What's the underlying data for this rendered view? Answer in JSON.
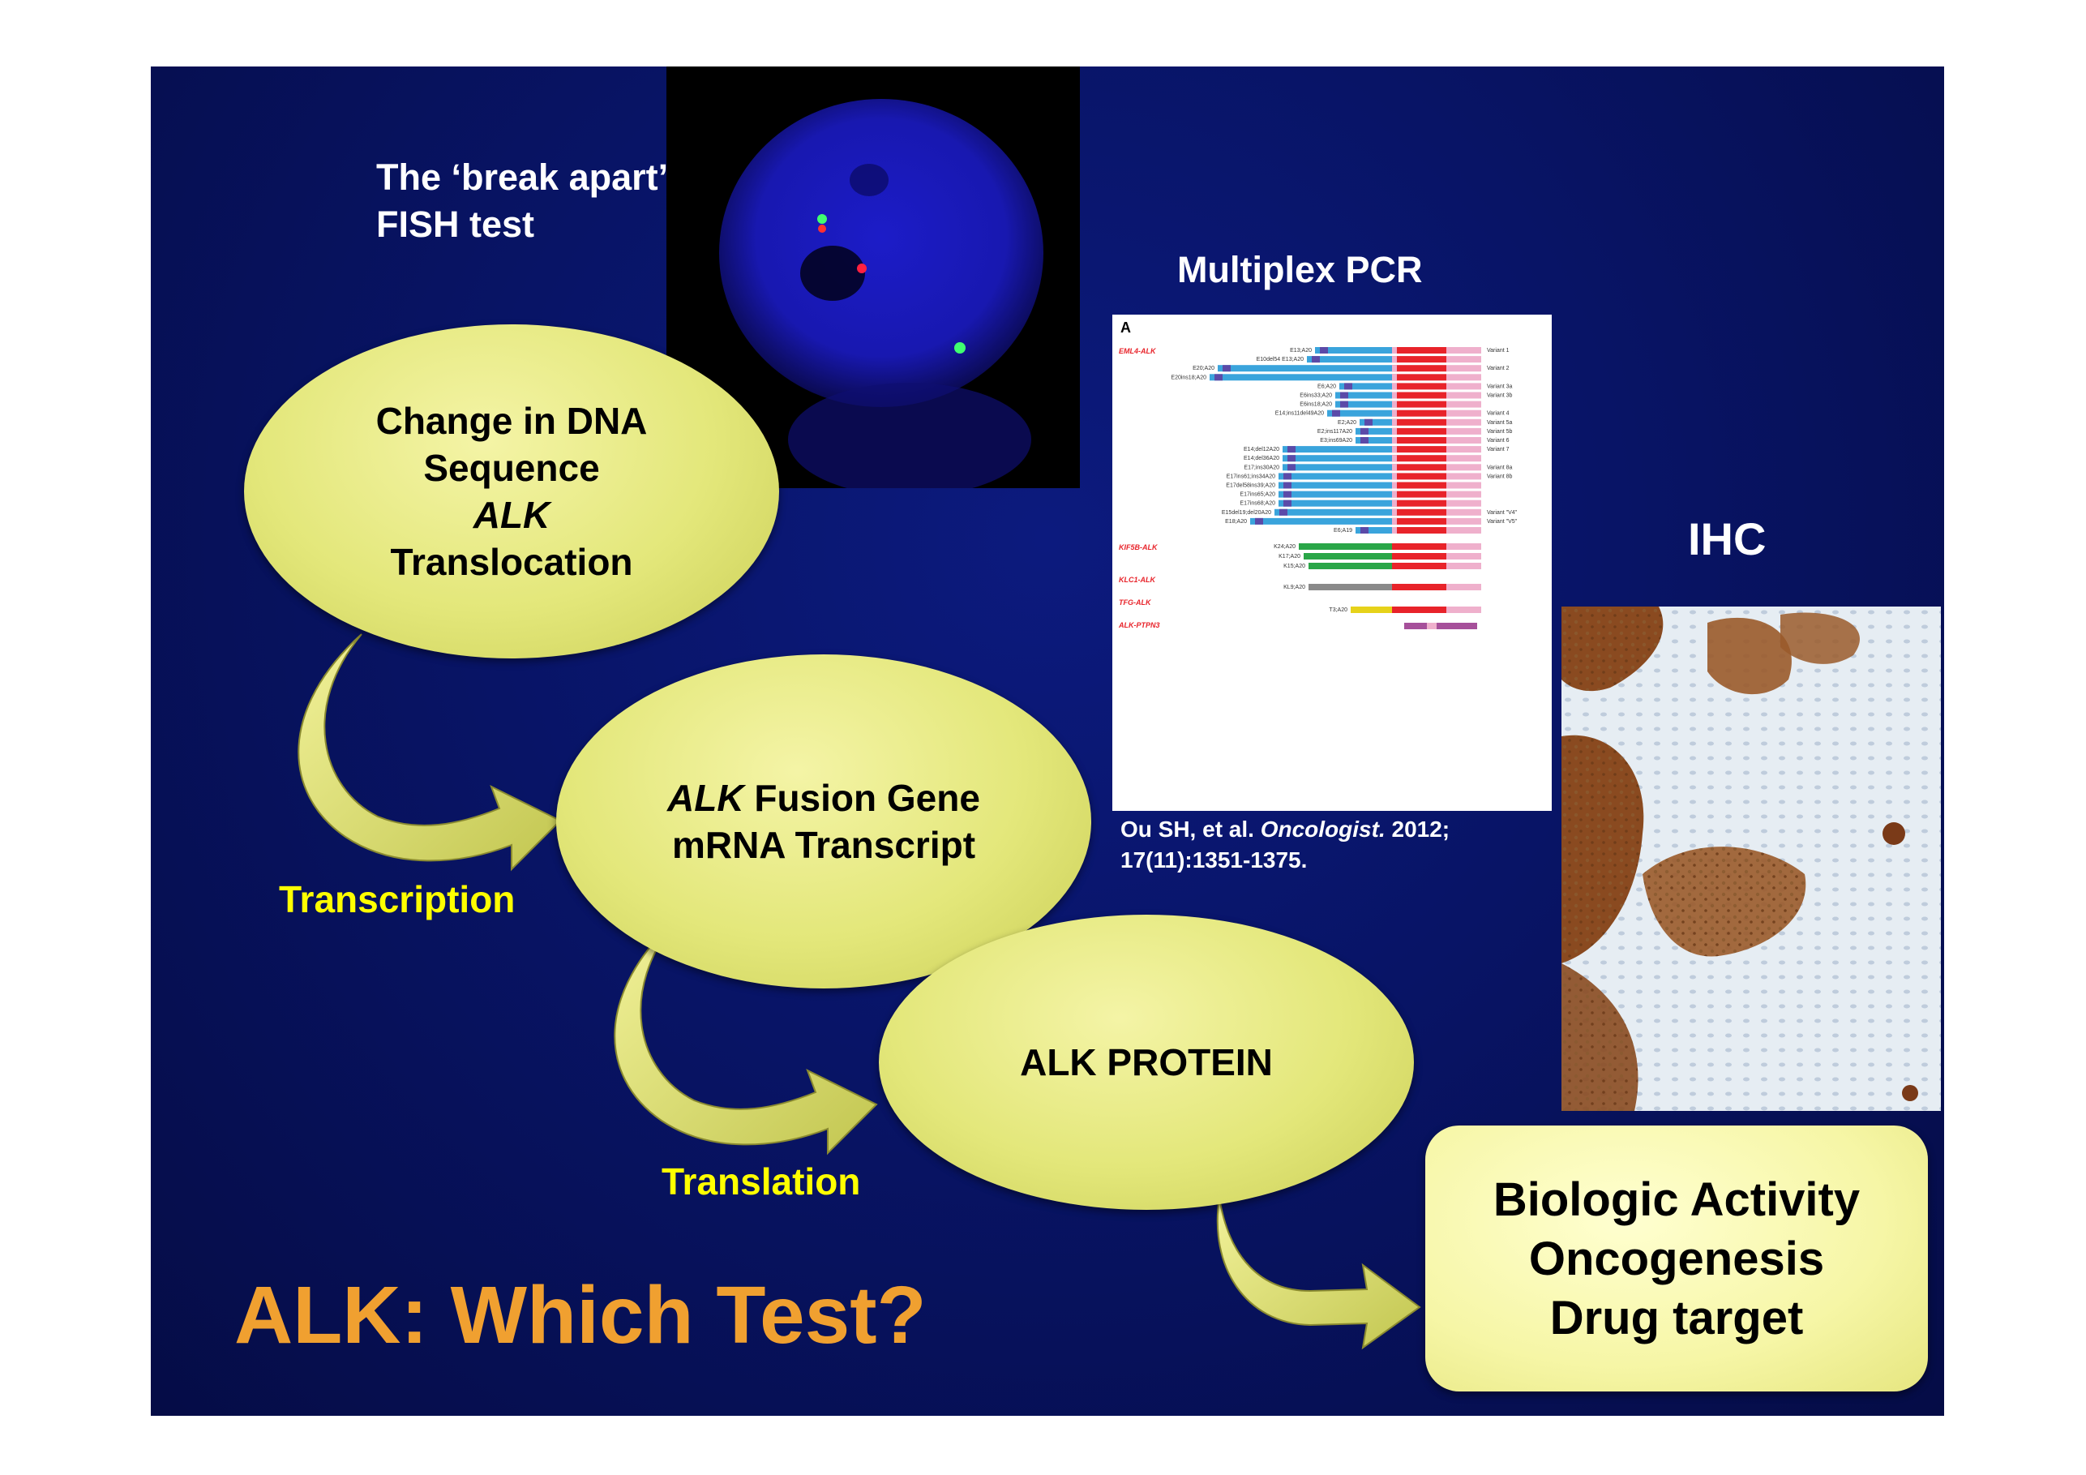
{
  "slide": {
    "title": "ALK: Which Test?",
    "fish_label_line1": "The ‘break apart’",
    "fish_label_line2": "FISH test",
    "pcr_label": "Multiplex PCR",
    "ihc_label": "IHC",
    "citation_authors": "Ou SH, et al.",
    "citation_journal": "Oncologist.",
    "citation_year": "2012;",
    "citation_pages": "17(11):1351-1375.",
    "transcription_label": "Transcription",
    "translation_label": "Translation",
    "oval1": {
      "line1": "Change in DNA",
      "line2": "Sequence",
      "line3": "ALK",
      "line4": "Translocation"
    },
    "oval2": {
      "line1_italic": "ALK",
      "line1_rest": " Fusion Gene",
      "line2": "mRNA Transcript"
    },
    "oval3": {
      "line1": "ALK PROTEIN"
    },
    "bio_box": {
      "line1": "Biologic Activity",
      "line2": "Oncogenesis",
      "line3": "Drug target"
    }
  },
  "pcr_figure": {
    "panel_letter": "A",
    "groups": [
      "EML4-ALK",
      "KIF5B-ALK",
      "KLC1-ALK",
      "TFG-ALK",
      "ALK-PTPN3"
    ],
    "eml4_rows": [
      {
        "label": "E13;A20",
        "variant": "Variant 1"
      },
      {
        "label": "E10del54 E13;A20",
        "variant": ""
      },
      {
        "label": "E20;A20",
        "variant": "Variant 2"
      },
      {
        "label": "E20ins18;A20",
        "variant": ""
      },
      {
        "label": "E6;A20",
        "variant": "Variant 3a"
      },
      {
        "label": "E6ins33;A20",
        "variant": "Variant 3b"
      },
      {
        "label": "E6ins18;A20",
        "variant": ""
      },
      {
        "label": "E14;ins11del49A20",
        "variant": "Variant 4"
      },
      {
        "label": "E2;A20",
        "variant": "Variant 5a"
      },
      {
        "label": "E2;ins117A20",
        "variant": "Variant 5b"
      },
      {
        "label": "E3;ins69A20",
        "variant": "Variant 6"
      },
      {
        "label": "E14;del12A20",
        "variant": "Variant 7"
      },
      {
        "label": "E14;del36A20",
        "variant": ""
      },
      {
        "label": "E17;ins30A20",
        "variant": "Variant 8a"
      },
      {
        "label": "E17ins61;ins34A20",
        "variant": "Variant 8b"
      },
      {
        "label": "E17del58ins39;A20",
        "variant": ""
      },
      {
        "label": "E17ins65;A20",
        "variant": ""
      },
      {
        "label": "E17ins68;A20",
        "variant": ""
      },
      {
        "label": "E15del19;del20A20",
        "variant": "Variant \"V4\""
      },
      {
        "label": "E18;A20",
        "variant": "Variant \"V5\""
      },
      {
        "label": "E6;A19",
        "variant": ""
      }
    ],
    "kif5b_rows": [
      "K24;A20",
      "K17;A20",
      "K15;A20"
    ],
    "klc1_rows": [
      "KL9;A20"
    ],
    "tfg_rows": [
      "T3;A20"
    ],
    "colors": {
      "blue": "#3aa4dc",
      "purple": "#5b4aa8",
      "red": "#e8232a",
      "pink": "#efb0cc",
      "green": "#2aa648",
      "gray": "#8a8a8a",
      "yellow": "#e6d21a",
      "magenta": "#a6509a",
      "group_label": "#e8232a"
    }
  },
  "colors": {
    "slide_bg": "#081466",
    "title": "#f0a030",
    "arrow_label": "#ffff00",
    "oval": "#e3e77a"
  }
}
